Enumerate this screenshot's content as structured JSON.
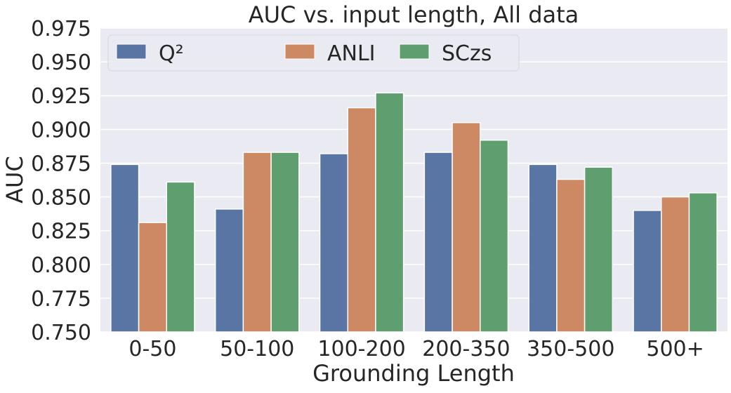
{
  "chart_data": {
    "type": "bar",
    "title": "AUC vs. input length, All data",
    "xlabel": "Grounding Length",
    "ylabel": "AUC",
    "ylim": [
      0.75,
      0.975
    ],
    "yticks": [
      "0.750",
      "0.775",
      "0.800",
      "0.825",
      "0.850",
      "0.875",
      "0.900",
      "0.925",
      "0.950",
      "0.975"
    ],
    "grid": true,
    "legend_placement": "top-left",
    "categories": [
      "0-50",
      "50-100",
      "100-200",
      "200-350",
      "350-500",
      "500+"
    ],
    "series": [
      {
        "name": "Q²",
        "color": "#5875a4",
        "values": [
          0.874,
          0.841,
          0.882,
          0.883,
          0.874,
          0.84
        ]
      },
      {
        "name": "ANLI",
        "color": "#cc8963",
        "values": [
          0.831,
          0.883,
          0.916,
          0.905,
          0.863,
          0.85
        ]
      },
      {
        "name": "SCzs",
        "color": "#5f9e6e",
        "values": [
          0.861,
          0.883,
          0.927,
          0.892,
          0.872,
          0.853
        ]
      }
    ],
    "background_color": "#eaeaf2"
  }
}
